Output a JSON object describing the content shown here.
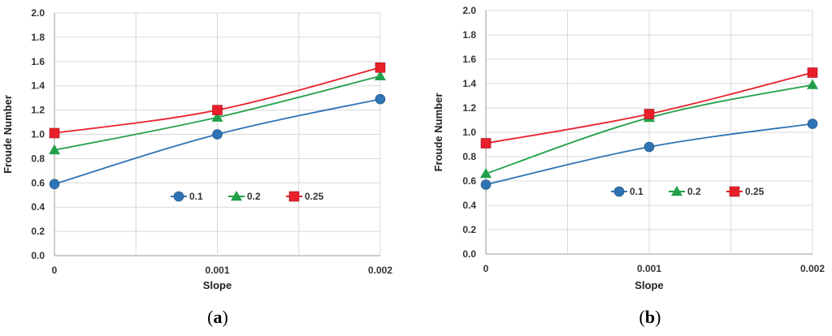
{
  "chart_data": [
    {
      "type": "line",
      "panel": "a",
      "panel_label": {
        "open": "(",
        "letter": "a",
        "close": ")"
      },
      "categories": [
        "0",
        "0.001",
        "0.002"
      ],
      "x": [
        0,
        0.001,
        0.002
      ],
      "xlabel": "Slope",
      "ylabel": "Froude Number",
      "ylim": [
        0,
        2.0
      ],
      "yticks": [
        "0.0",
        "0.2",
        "0.4",
        "0.6",
        "0.8",
        "1.0",
        "1.2",
        "1.4",
        "1.6",
        "1.8",
        "2.0"
      ],
      "grid": "both",
      "legend_position": "center",
      "series": [
        {
          "name": "0.1",
          "values": [
            0.59,
            1.0,
            1.29
          ],
          "color": "#2E74B5",
          "marker": "circle"
        },
        {
          "name": "0.2",
          "values": [
            0.87,
            1.14,
            1.48
          ],
          "color": "#21A04A",
          "marker": "triangle"
        },
        {
          "name": "0.25",
          "values": [
            1.01,
            1.2,
            1.55
          ],
          "color": "#E8202A",
          "marker": "square"
        }
      ]
    },
    {
      "type": "line",
      "panel": "b",
      "panel_label": {
        "open": "(",
        "letter": "b",
        "close": ")"
      },
      "categories": [
        "0",
        "0.001",
        "0.002"
      ],
      "x": [
        0,
        0.001,
        0.002
      ],
      "xlabel": "Slope",
      "ylabel": "Froude Number",
      "ylim": [
        0,
        2.0
      ],
      "yticks": [
        "0.0",
        "0.2",
        "0.4",
        "0.6",
        "0.8",
        "1.0",
        "1.2",
        "1.4",
        "1.6",
        "1.8",
        "2.0"
      ],
      "grid": "both",
      "legend_position": "center",
      "series": [
        {
          "name": "0.1",
          "values": [
            0.57,
            0.88,
            1.07
          ],
          "color": "#2E74B5",
          "marker": "circle"
        },
        {
          "name": "0.2",
          "values": [
            0.66,
            1.12,
            1.39
          ],
          "color": "#21A04A",
          "marker": "triangle"
        },
        {
          "name": "0.25",
          "values": [
            0.91,
            1.15,
            1.49
          ],
          "color": "#E8202A",
          "marker": "square"
        }
      ]
    }
  ]
}
